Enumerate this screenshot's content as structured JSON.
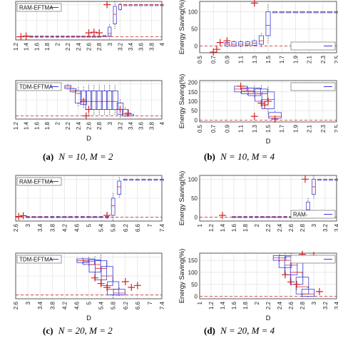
{
  "chart_data": [
    {
      "type": "box",
      "ylabel": "",
      "xlabel": "",
      "legend": {
        "label": "RAM-EFTMA",
        "placement": "top-left"
      },
      "x_ticks": [
        "1.2",
        "1.4",
        "1.6",
        "1.8",
        "2",
        "2.2",
        "2.4",
        "2.6",
        "2.8",
        "3",
        "3.2",
        "3.4",
        "3.6",
        "3.8",
        "4"
      ],
      "ylim": [
        -10,
        110
      ],
      "grid": true,
      "boxes": [
        {
          "x": 1.5,
          "q1": 0,
          "median": 1,
          "q3": 2
        },
        {
          "x": 1.6,
          "q1": 0,
          "median": 1,
          "q3": 2
        },
        {
          "x": 1.7,
          "q1": 0,
          "median": 1,
          "q3": 2
        },
        {
          "x": 1.8,
          "q1": 0,
          "median": 1,
          "q3": 2
        },
        {
          "x": 1.9,
          "q1": 0,
          "median": 1,
          "q3": 2
        },
        {
          "x": 2.0,
          "q1": 0,
          "median": 1,
          "q3": 2
        },
        {
          "x": 2.1,
          "q1": 0,
          "median": 1,
          "q3": 2
        },
        {
          "x": 2.2,
          "q1": 0,
          "median": 1,
          "q3": 2
        },
        {
          "x": 2.3,
          "q1": 0,
          "median": 1,
          "q3": 2
        },
        {
          "x": 2.4,
          "q1": 0,
          "median": 1,
          "q3": 2
        },
        {
          "x": 2.5,
          "q1": 0,
          "median": 1,
          "q3": 2
        },
        {
          "x": 2.6,
          "q1": 0,
          "median": 1,
          "q3": 2
        },
        {
          "x": 2.7,
          "q1": 0,
          "median": 1,
          "q3": 2
        },
        {
          "x": 2.8,
          "q1": 0,
          "median": 1,
          "q3": 2
        },
        {
          "x": 2.9,
          "q1": 0,
          "median": 1,
          "q3": 4
        },
        {
          "x": 3.0,
          "q1": 2,
          "median": 10,
          "q3": 30
        },
        {
          "x": 3.1,
          "q1": 40,
          "median": 70,
          "q3": 95
        },
        {
          "x": 3.2,
          "q1": 85,
          "median": 100,
          "q3": 100
        },
        {
          "x": 3.3,
          "q1": 100,
          "median": 100,
          "q3": 100
        },
        {
          "x": 3.4,
          "q1": 100,
          "median": 100,
          "q3": 100
        },
        {
          "x": 3.5,
          "q1": 100,
          "median": 100,
          "q3": 100
        },
        {
          "x": 3.6,
          "q1": 100,
          "median": 100,
          "q3": 100
        },
        {
          "x": 3.7,
          "q1": 100,
          "median": 100,
          "q3": 100
        },
        {
          "x": 3.8,
          "q1": 100,
          "median": 100,
          "q3": 100
        },
        {
          "x": 3.9,
          "q1": 100,
          "median": 100,
          "q3": 100
        },
        {
          "x": 4.0,
          "q1": 100,
          "median": 100,
          "q3": 100
        }
      ],
      "outliers": [
        [
          1.3,
          0
        ],
        [
          1.4,
          2
        ],
        [
          2.6,
          12
        ],
        [
          2.8,
          12
        ],
        [
          2.7,
          14
        ],
        [
          2.95,
          100
        ]
      ]
    },
    {
      "type": "box",
      "ylabel": "Energy Saving(%)",
      "xlabel": "",
      "legend": {
        "label": "",
        "placement": "bottom-right"
      },
      "y_ticks": [
        0,
        50,
        100
      ],
      "x_ticks": [
        "0.5",
        "0.7",
        "0.9",
        "1.1",
        "1.3",
        "1.5",
        "1.7",
        "1.9",
        "2.1",
        "2.3",
        "2.5"
      ],
      "ylim": [
        -20,
        130
      ],
      "grid": true,
      "boxes": [
        {
          "x": 0.9,
          "q1": 0,
          "median": 5,
          "q3": 10
        },
        {
          "x": 1.0,
          "q1": 0,
          "median": 5,
          "q3": 12
        },
        {
          "x": 1.1,
          "q1": 0,
          "median": 5,
          "q3": 12
        },
        {
          "x": 1.2,
          "q1": 2,
          "median": 6,
          "q3": 12
        },
        {
          "x": 1.3,
          "q1": 2,
          "median": 8,
          "q3": 15
        },
        {
          "x": 1.4,
          "q1": 5,
          "median": 15,
          "q3": 30
        },
        {
          "x": 1.5,
          "q1": 30,
          "median": 60,
          "q3": 100
        },
        {
          "x": 1.6,
          "q1": 100,
          "median": 100,
          "q3": 100
        },
        {
          "x": 1.7,
          "q1": 100,
          "median": 100,
          "q3": 100
        },
        {
          "x": 1.8,
          "q1": 100,
          "median": 100,
          "q3": 100
        },
        {
          "x": 1.9,
          "q1": 100,
          "median": 100,
          "q3": 100
        },
        {
          "x": 2.0,
          "q1": 100,
          "median": 100,
          "q3": 100
        },
        {
          "x": 2.1,
          "q1": 100,
          "median": 100,
          "q3": 100
        },
        {
          "x": 2.2,
          "q1": 100,
          "median": 100,
          "q3": 100
        },
        {
          "x": 2.3,
          "q1": 100,
          "median": 100,
          "q3": 100
        },
        {
          "x": 2.4,
          "q1": 100,
          "median": 100,
          "q3": 100
        },
        {
          "x": 2.5,
          "q1": 100,
          "median": 100,
          "q3": 100
        }
      ],
      "outliers": [
        [
          0.7,
          -18
        ],
        [
          0.75,
          -10
        ],
        [
          0.8,
          10
        ],
        [
          0.9,
          15
        ],
        [
          1.3,
          125
        ]
      ]
    },
    {
      "type": "box",
      "ylabel": "",
      "xlabel": "D",
      "legend": {
        "label": "TDM-EFTMA",
        "placement": "top-left"
      },
      "x_ticks": [
        "1.2",
        "1.4",
        "1.6",
        "1.8",
        "2",
        "2.2",
        "2.4",
        "2.6",
        "2.8",
        "3",
        "3.2",
        "3.4",
        "3.6",
        "3.8",
        "4"
      ],
      "ylim": [
        -10,
        110
      ],
      "grid": true,
      "boxes": [
        {
          "x": 2.2,
          "q1": 85,
          "median": 90,
          "q3": 95
        },
        {
          "x": 2.3,
          "q1": 75,
          "median": 80,
          "q3": 85
        },
        {
          "x": 2.4,
          "q1": 40,
          "median": 70,
          "q3": 78
        },
        {
          "x": 2.5,
          "q1": 35,
          "median": 50,
          "q3": 78
        },
        {
          "x": 2.6,
          "q1": 20,
          "median": 45,
          "q3": 78
        },
        {
          "x": 2.7,
          "q1": 20,
          "median": 45,
          "q3": 78
        },
        {
          "x": 2.8,
          "q1": 20,
          "median": 45,
          "q3": 78
        },
        {
          "x": 2.9,
          "q1": 20,
          "median": 45,
          "q3": 78
        },
        {
          "x": 3.0,
          "q1": 20,
          "median": 45,
          "q3": 78
        },
        {
          "x": 3.1,
          "q1": 20,
          "median": 45,
          "q3": 78
        },
        {
          "x": 3.2,
          "q1": 5,
          "median": 20,
          "q3": 40
        },
        {
          "x": 3.3,
          "q1": 0,
          "median": 5,
          "q3": 20
        },
        {
          "x": 3.4,
          "q1": 0,
          "median": 0,
          "q3": 5
        }
      ],
      "outliers": [
        [
          2.5,
          45
        ],
        [
          2.6,
          20
        ],
        [
          2.55,
          0
        ],
        [
          3.2,
          20
        ],
        [
          3.35,
          8
        ]
      ]
    },
    {
      "type": "box",
      "ylabel": "Energy Saving(%)",
      "xlabel": "D",
      "legend": {
        "label": "",
        "placement": "top-right"
      },
      "y_ticks": [
        0,
        50,
        100,
        150,
        200
      ],
      "x_ticks": [
        "0.5",
        "0.7",
        "0.9",
        "1.1",
        "1.3",
        "1.5",
        "1.7",
        "1.9",
        "2.1",
        "2.3",
        "2.5"
      ],
      "ylim": [
        -10,
        210
      ],
      "grid": true,
      "boxes": [
        {
          "x": 1.1,
          "q1": 150,
          "median": 165,
          "q3": 180
        },
        {
          "x": 1.2,
          "q1": 140,
          "median": 155,
          "q3": 170
        },
        {
          "x": 1.3,
          "q1": 130,
          "median": 150,
          "q3": 170
        },
        {
          "x": 1.4,
          "q1": 100,
          "median": 140,
          "q3": 165
        },
        {
          "x": 1.5,
          "q1": 60,
          "median": 110,
          "q3": 150
        },
        {
          "x": 1.6,
          "q1": 10,
          "median": 20,
          "q3": 40
        }
      ],
      "outliers": [
        [
          1.1,
          180
        ],
        [
          1.3,
          20
        ],
        [
          1.4,
          90
        ],
        [
          1.45,
          80
        ],
        [
          1.5,
          100
        ],
        [
          1.6,
          5
        ]
      ]
    },
    {
      "type": "box",
      "ylabel": "",
      "xlabel": "",
      "legend": {
        "label": "RAM-EFTMA",
        "placement": "top-left"
      },
      "x_ticks": [
        "2.6",
        "3",
        "3.4",
        "3.8",
        "4.2",
        "4.6",
        "5",
        "5.4",
        "5.8",
        "6.2",
        "6.6",
        "7",
        "7.4"
      ],
      "ylim": [
        -10,
        110
      ],
      "grid": true,
      "boxes": [
        {
          "x": 3.0,
          "q1": 0,
          "median": 1,
          "q3": 2
        },
        {
          "x": 3.2,
          "q1": 0,
          "median": 1,
          "q3": 2
        },
        {
          "x": 3.4,
          "q1": 0,
          "median": 1,
          "q3": 2
        },
        {
          "x": 3.6,
          "q1": 0,
          "median": 1,
          "q3": 2
        },
        {
          "x": 3.8,
          "q1": 0,
          "median": 1,
          "q3": 2
        },
        {
          "x": 4.0,
          "q1": 0,
          "median": 1,
          "q3": 2
        },
        {
          "x": 4.2,
          "q1": 0,
          "median": 1,
          "q3": 2
        },
        {
          "x": 4.4,
          "q1": 0,
          "median": 1,
          "q3": 2
        },
        {
          "x": 4.6,
          "q1": 0,
          "median": 1,
          "q3": 2
        },
        {
          "x": 4.8,
          "q1": 0,
          "median": 1,
          "q3": 2
        },
        {
          "x": 5.0,
          "q1": 0,
          "median": 1,
          "q3": 2
        },
        {
          "x": 5.2,
          "q1": 0,
          "median": 1,
          "q3": 2
        },
        {
          "x": 5.4,
          "q1": 0,
          "median": 1,
          "q3": 2
        },
        {
          "x": 5.6,
          "q1": 0,
          "median": 1,
          "q3": 2
        },
        {
          "x": 5.8,
          "q1": 5,
          "median": 30,
          "q3": 50
        },
        {
          "x": 6.0,
          "q1": 60,
          "median": 80,
          "q3": 95
        },
        {
          "x": 6.2,
          "q1": 100,
          "median": 100,
          "q3": 100
        },
        {
          "x": 6.4,
          "q1": 100,
          "median": 100,
          "q3": 100
        },
        {
          "x": 6.6,
          "q1": 100,
          "median": 100,
          "q3": 100
        },
        {
          "x": 6.8,
          "q1": 100,
          "median": 100,
          "q3": 100
        },
        {
          "x": 7.0,
          "q1": 100,
          "median": 100,
          "q3": 100
        },
        {
          "x": 7.2,
          "q1": 100,
          "median": 100,
          "q3": 100
        },
        {
          "x": 7.4,
          "q1": 100,
          "median": 100,
          "q3": 100
        }
      ],
      "outliers": [
        [
          2.7,
          2
        ],
        [
          2.85,
          4
        ],
        [
          5.6,
          5
        ]
      ]
    },
    {
      "type": "box",
      "ylabel": "Energy Saving(%)",
      "xlabel": "",
      "legend": {
        "label": "RAM-",
        "placement": "bottom-right"
      },
      "y_ticks": [
        0,
        50,
        100
      ],
      "x_ticks": [
        "1",
        "1.2",
        "1.4",
        "1.6",
        "1.8",
        "2",
        "2.2",
        "2.4",
        "2.6",
        "2.8",
        "3",
        "3.2",
        "3.4"
      ],
      "ylim": [
        -10,
        110
      ],
      "grid": true,
      "boxes": [
        {
          "x": 1.6,
          "q1": 0,
          "median": 1,
          "q3": 2
        },
        {
          "x": 1.7,
          "q1": 0,
          "median": 1,
          "q3": 2
        },
        {
          "x": 1.8,
          "q1": 0,
          "median": 1,
          "q3": 2
        },
        {
          "x": 1.9,
          "q1": 0,
          "median": 1,
          "q3": 2
        },
        {
          "x": 2.0,
          "q1": 0,
          "median": 1,
          "q3": 2
        },
        {
          "x": 2.1,
          "q1": 0,
          "median": 1,
          "q3": 2
        },
        {
          "x": 2.2,
          "q1": 0,
          "median": 1,
          "q3": 2
        },
        {
          "x": 2.3,
          "q1": 0,
          "median": 1,
          "q3": 2
        },
        {
          "x": 2.4,
          "q1": 0,
          "median": 1,
          "q3": 2
        },
        {
          "x": 2.5,
          "q1": 0,
          "median": 1,
          "q3": 2
        },
        {
          "x": 2.6,
          "q1": 0,
          "median": 1,
          "q3": 2
        },
        {
          "x": 2.7,
          "q1": 0,
          "median": 1,
          "q3": 2
        },
        {
          "x": 2.8,
          "q1": 0,
          "median": 1,
          "q3": 2
        },
        {
          "x": 2.9,
          "q1": 5,
          "median": 20,
          "q3": 40
        },
        {
          "x": 3.0,
          "q1": 60,
          "median": 80,
          "q3": 100
        },
        {
          "x": 3.1,
          "q1": 100,
          "median": 100,
          "q3": 100
        },
        {
          "x": 3.2,
          "q1": 100,
          "median": 100,
          "q3": 100
        },
        {
          "x": 3.3,
          "q1": 100,
          "median": 100,
          "q3": 100
        },
        {
          "x": 3.4,
          "q1": 100,
          "median": 100,
          "q3": 100
        },
        {
          "x": 3.5,
          "q1": 100,
          "median": 100,
          "q3": 100
        },
        {
          "x": 3.6,
          "q1": 100,
          "median": 100,
          "q3": 100
        },
        {
          "x": 3.7,
          "q1": 100,
          "median": 100,
          "q3": 100
        },
        {
          "x": 3.8,
          "q1": 100,
          "median": 100,
          "q3": 100
        }
      ],
      "outliers": [
        [
          1.4,
          5
        ],
        [
          2.85,
          100
        ]
      ]
    },
    {
      "type": "box",
      "ylabel": "",
      "xlabel": "D",
      "legend": {
        "label": "TDM-EFTMA",
        "placement": "top-left"
      },
      "x_ticks": [
        "2.6",
        "3",
        "3.4",
        "3.8",
        "4.2",
        "4.6",
        "5",
        "5.4",
        "5.8",
        "6.2",
        "6.6",
        "7",
        "7.4"
      ],
      "ylim": [
        -10,
        110
      ],
      "grid": true,
      "boxes": [
        {
          "x": 4.8,
          "q1": 85,
          "median": 90,
          "q3": 95
        },
        {
          "x": 5.0,
          "q1": 80,
          "median": 88,
          "q3": 95
        },
        {
          "x": 5.2,
          "q1": 60,
          "median": 80,
          "q3": 92
        },
        {
          "x": 5.4,
          "q1": 40,
          "median": 70,
          "q3": 90
        },
        {
          "x": 5.6,
          "q1": 25,
          "median": 50,
          "q3": 75
        },
        {
          "x": 5.8,
          "q1": 0,
          "median": 15,
          "q3": 35
        },
        {
          "x": 6.0,
          "q1": 0,
          "median": 5,
          "q3": 15
        }
      ],
      "outliers": [
        [
          5.2,
          45
        ],
        [
          5.4,
          30
        ],
        [
          5.6,
          20
        ],
        [
          6.2,
          35
        ],
        [
          6.4,
          20
        ],
        [
          6.6,
          25
        ]
      ]
    },
    {
      "type": "box",
      "ylabel": "Energy Saving(%)",
      "xlabel": "D",
      "legend": {
        "label": "",
        "placement": "top-right"
      },
      "y_ticks": [
        0,
        50,
        100,
        150
      ],
      "x_ticks": [
        "1",
        "1.2",
        "1.4",
        "1.6",
        "1.8",
        "2",
        "2.2",
        "2.4",
        "2.6",
        "2.8",
        "3",
        "3.2",
        "3.4"
      ],
      "ylim": [
        -10,
        180
      ],
      "grid": true,
      "boxes": [
        {
          "x": 2.4,
          "q1": 150,
          "median": 160,
          "q3": 170
        },
        {
          "x": 2.5,
          "q1": 120,
          "median": 150,
          "q3": 170
        },
        {
          "x": 2.6,
          "q1": 90,
          "median": 130,
          "q3": 165
        },
        {
          "x": 2.7,
          "q1": 50,
          "median": 100,
          "q3": 140
        },
        {
          "x": 2.8,
          "q1": 10,
          "median": 40,
          "q3": 80
        },
        {
          "x": 2.9,
          "q1": 0,
          "median": 10,
          "q3": 30
        }
      ],
      "outliers": [
        [
          2.5,
          90
        ],
        [
          2.6,
          60
        ],
        [
          2.7,
          50
        ],
        [
          2.8,
          175
        ],
        [
          3.0,
          170
        ],
        [
          3.1,
          20
        ]
      ]
    }
  ],
  "captions": [
    {
      "letter": "(a)",
      "text": "N = 10, M = 2"
    },
    {
      "letter": "(b)",
      "text": "N = 10, M = 4"
    },
    {
      "letter": "(c)",
      "text": "N = 20, M = 2"
    },
    {
      "letter": "(d)",
      "text": "N = 20, M = 4"
    }
  ],
  "colors": {
    "box": "#3b3bd6",
    "median": "#d62020",
    "outlier": "#d62020",
    "whisker": "#222222",
    "grid": "#dcdcdc",
    "dashed": "#d62020"
  }
}
